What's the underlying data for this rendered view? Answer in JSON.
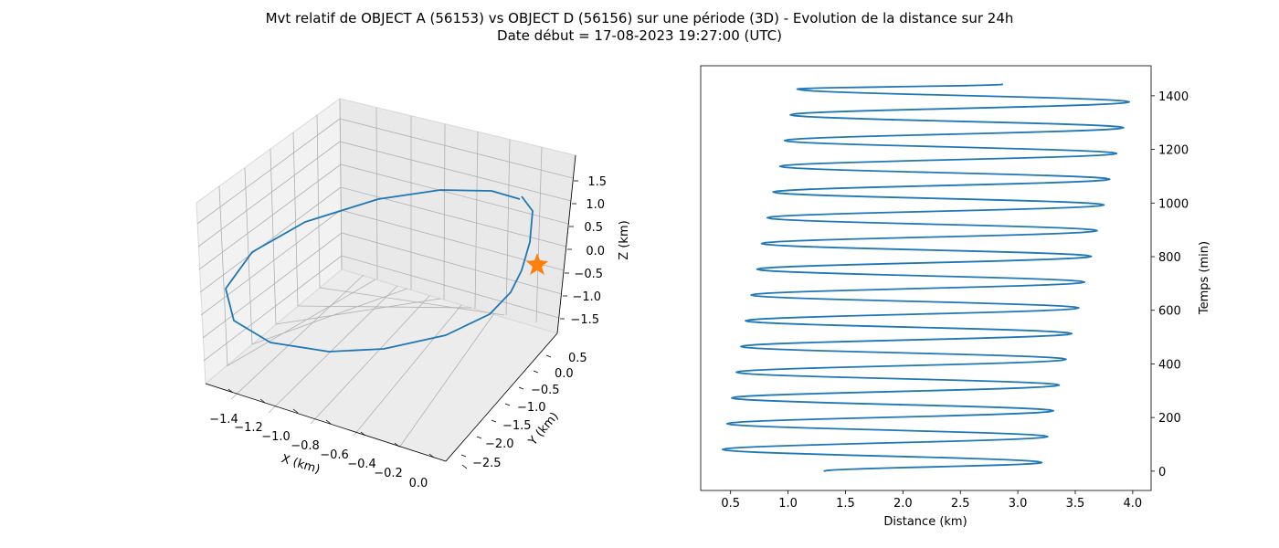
{
  "figure": {
    "title_line1": "Mvt relatif de OBJECT A (56153) vs OBJECT D (56156) sur une période (3D) - Evolution de la distance sur 24h",
    "title_line2": "Date début = 17-08-2023 19:27:00 (UTC)"
  },
  "colors": {
    "trajectory": "#1f77b4",
    "marker": "#ff7f0e",
    "pane": "#f2f2f2",
    "grid": "#b0b0b0"
  },
  "chart_data": [
    {
      "type": "line3d",
      "xlabel": "X (km)",
      "ylabel": "Y (km)",
      "zlabel": "Z (km)",
      "xticks": [
        "−1.4",
        "−1.2",
        "−1.0",
        "−0.8",
        "−0.6",
        "−0.4",
        "−0.2",
        "0.0"
      ],
      "yticks": [
        "0.5",
        "0.0",
        "−0.5",
        "−1.0",
        "−1.5",
        "−2.0",
        "−2.5"
      ],
      "zticks": [
        "1.5",
        "1.0",
        "0.5",
        "0.0",
        "−0.5",
        "−1.0",
        "−1.5"
      ],
      "grid": true,
      "marker": {
        "shape": "star",
        "label": "star-marker"
      }
    },
    {
      "type": "line",
      "xlabel": "Distance (km)",
      "ylabel": "Temps (min)",
      "ylabel_side": "right",
      "xlim": [
        0.24,
        4.16
      ],
      "ylim": [
        -72,
        1512
      ],
      "xticks": [
        0.5,
        1.0,
        1.5,
        2.0,
        2.5,
        3.0,
        3.5,
        4.0
      ],
      "yticks": [
        0,
        200,
        400,
        600,
        800,
        1000,
        1200,
        1400
      ],
      "series": [
        {
          "points": [
            [
              1.31,
              0
            ],
            [
              3.21,
              32
            ],
            [
              0.43,
              81
            ],
            [
              3.26,
              129
            ],
            [
              0.47,
              177
            ],
            [
              3.31,
              225
            ],
            [
              0.51,
              273
            ],
            [
              3.36,
              321
            ],
            [
              0.55,
              369
            ],
            [
              3.42,
              417
            ],
            [
              0.59,
              465
            ],
            [
              3.47,
              513
            ],
            [
              0.63,
              561
            ],
            [
              3.53,
              609
            ],
            [
              0.68,
              657
            ],
            [
              3.58,
              705
            ],
            [
              0.73,
              753
            ],
            [
              3.64,
              801
            ],
            [
              0.77,
              849
            ],
            [
              3.69,
              897
            ],
            [
              0.82,
              945
            ],
            [
              3.75,
              993
            ],
            [
              0.87,
              1041
            ],
            [
              3.8,
              1089
            ],
            [
              0.93,
              1137
            ],
            [
              3.86,
              1185
            ],
            [
              0.97,
              1233
            ],
            [
              3.92,
              1281
            ],
            [
              1.02,
              1329
            ],
            [
              3.97,
              1377
            ],
            [
              1.08,
              1425
            ],
            [
              2.87,
              1443
            ]
          ]
        }
      ]
    }
  ]
}
